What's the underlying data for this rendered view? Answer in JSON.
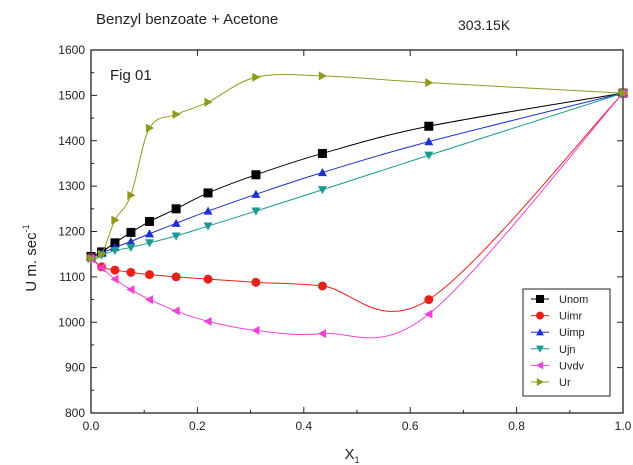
{
  "chart_data": {
    "type": "scatter",
    "title": "Benzyl benzoate + Acetone",
    "subtitle": "303.15K",
    "annotation": "Fig 01",
    "xlabel": "X",
    "xlabel_subscript": "1",
    "ylabel": "U m. sec",
    "ylabel_superscript": "-1",
    "xlim": [
      0.0,
      1.0
    ],
    "ylim": [
      800,
      1600
    ],
    "xticks": [
      "0.0",
      "0.2",
      "0.4",
      "0.6",
      "0.8",
      "1.0"
    ],
    "yticks": [
      "800",
      "900",
      "1000",
      "1100",
      "1200",
      "1300",
      "1400",
      "1500",
      "1600"
    ],
    "grid": false,
    "legend_position": "lower-right",
    "x": [
      0.0,
      0.02,
      0.045,
      0.075,
      0.11,
      0.16,
      0.22,
      0.31,
      0.435,
      0.635,
      1.0
    ],
    "series": [
      {
        "name": "Unom",
        "color": "#000000",
        "marker": "square",
        "values": [
          1145,
          1155,
          1175,
          1198,
          1222,
          1250,
          1285,
          1325,
          1372,
          1432,
          1505
        ]
      },
      {
        "name": "Uimr",
        "color": "#e8201a",
        "marker": "circle",
        "values": [
          1143,
          1122,
          1115,
          1110,
          1105,
          1100,
          1095,
          1088,
          1080,
          1050,
          1505
        ]
      },
      {
        "name": "Uimp",
        "color": "#1f2fd0",
        "marker": "triangle-up",
        "values": [
          1143,
          1152,
          1165,
          1178,
          1195,
          1218,
          1245,
          1282,
          1330,
          1398,
          1505
        ]
      },
      {
        "name": "Ujn",
        "color": "#1a9a92",
        "marker": "triangle-down",
        "values": [
          1140,
          1148,
          1158,
          1165,
          1175,
          1190,
          1212,
          1245,
          1292,
          1368,
          1505
        ]
      },
      {
        "name": "Uvdv",
        "color": "#ee44d6",
        "marker": "triangle-left",
        "values": [
          1140,
          1120,
          1095,
          1072,
          1050,
          1025,
          1002,
          982,
          975,
          1018,
          1505
        ]
      },
      {
        "name": "Ur",
        "color": "#8f9a1c",
        "marker": "triangle-right",
        "values": [
          1140,
          1150,
          1225,
          1280,
          1428,
          1458,
          1485,
          1540,
          1543,
          1528,
          1505
        ]
      }
    ]
  }
}
